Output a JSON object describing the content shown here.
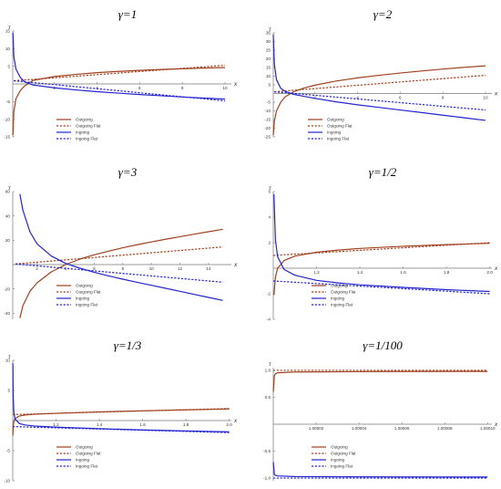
{
  "colors": {
    "outgoing": "#a0401e",
    "ingoing": "#2323d2",
    "axis": "#777777",
    "tick_text": "#333333"
  },
  "legend_labels": [
    "Outgoing",
    "Outgoing Flat",
    "Ingoing",
    "Ingoing Flat"
  ],
  "chart_data": [
    {
      "type": "line",
      "title": "γ=1",
      "xlabel": "x",
      "ylabel": "τ",
      "xlim": [
        0.05,
        10.3
      ],
      "ylim": [
        -15,
        15
      ],
      "x_ticks": [
        2,
        4,
        6,
        8,
        10
      ],
      "y_ticks": [
        -15,
        -10,
        -5,
        5,
        10,
        15
      ],
      "legend_placement": "bottom-center",
      "series": [
        {
          "name": "Outgoing",
          "style": "solid",
          "x": [
            0.06,
            0.1,
            0.2,
            0.4,
            0.6,
            1,
            2,
            3,
            4,
            5,
            6,
            7,
            8,
            9,
            10
          ],
          "y": [
            -14.5,
            -7.8,
            -4.2,
            -1.9,
            -0.6,
            1.0,
            2.1,
            2.7,
            3.2,
            3.55,
            3.85,
            4.1,
            4.3,
            4.5,
            4.65
          ]
        },
        {
          "name": "Outgoing Flat",
          "style": "dashed",
          "x": [
            0.1,
            10
          ],
          "y": [
            0.9,
            5.3
          ]
        },
        {
          "name": "Ingoing",
          "style": "solid",
          "x": [
            0.06,
            0.1,
            0.2,
            0.4,
            0.6,
            1,
            2,
            3,
            4,
            5,
            6,
            7,
            8,
            9,
            10
          ],
          "y": [
            14.5,
            7.8,
            4.2,
            1.9,
            0.6,
            -0.3,
            -1.1,
            -1.7,
            -2.2,
            -2.6,
            -3.0,
            -3.35,
            -3.7,
            -4.0,
            -4.3
          ]
        },
        {
          "name": "Ingoing Flat",
          "style": "dashed",
          "x": [
            0.1,
            10
          ],
          "y": [
            0.9,
            -4.8
          ]
        }
      ]
    },
    {
      "type": "line",
      "title": "γ=2",
      "xlabel": "x",
      "ylabel": "τ",
      "xlim": [
        0.05,
        10.3
      ],
      "ylim": [
        -25,
        35
      ],
      "x_ticks": [
        2,
        4,
        6,
        8,
        10
      ],
      "y_ticks": [
        -25,
        -20,
        -15,
        -10,
        -5,
        5,
        10,
        15,
        20,
        25,
        30,
        35
      ],
      "legend_placement": "bottom-center",
      "series": [
        {
          "name": "Outgoing",
          "style": "solid",
          "x": [
            0.05,
            0.1,
            0.2,
            0.4,
            0.6,
            1,
            1.5,
            2,
            3,
            4,
            5,
            6,
            7,
            8,
            9,
            10
          ],
          "y": [
            -24,
            -16,
            -10,
            -5,
            -2,
            1.0,
            3.2,
            4.8,
            7.2,
            9.0,
            10.5,
            11.8,
            13.0,
            14.1,
            15.1,
            16.0
          ]
        },
        {
          "name": "Outgoing Flat",
          "style": "dashed",
          "x": [
            0.1,
            10
          ],
          "y": [
            1.0,
            10.5
          ]
        },
        {
          "name": "Ingoing",
          "style": "solid",
          "x": [
            0.05,
            0.1,
            0.2,
            0.4,
            0.6,
            1,
            2,
            3,
            4,
            5,
            6,
            7,
            8,
            9,
            10
          ],
          "y": [
            34,
            17,
            8,
            3,
            1.3,
            -0.5,
            -2.8,
            -4.8,
            -6.5,
            -8.0,
            -9.5,
            -11.0,
            -12.5,
            -14.0,
            -15.5
          ]
        },
        {
          "name": "Ingoing Flat",
          "style": "dashed",
          "x": [
            0.1,
            10
          ],
          "y": [
            1.0,
            -9.5
          ]
        }
      ]
    },
    {
      "type": "line",
      "title": "γ=3",
      "xlabel": "x",
      "ylabel": "τ",
      "xlim": [
        0.3,
        15.6
      ],
      "ylim": [
        -45,
        60
      ],
      "x_ticks": [
        2,
        4,
        6,
        8,
        10,
        12,
        14
      ],
      "y_ticks": [
        -40,
        -20,
        20,
        40,
        60
      ],
      "legend_placement": "bottom-center",
      "series": [
        {
          "name": "Outgoing",
          "style": "solid",
          "x": [
            0.8,
            1,
            1.5,
            2,
            3,
            4,
            5,
            6,
            7,
            8,
            9,
            10,
            11,
            12,
            13,
            14,
            15
          ],
          "y": [
            -44,
            -34,
            -22,
            -15,
            -6,
            0,
            4.5,
            8,
            11,
            13.8,
            16.3,
            18.6,
            20.8,
            22.9,
            25,
            27,
            29
          ]
        },
        {
          "name": "Outgoing Flat",
          "style": "dashed",
          "x": [
            0.5,
            15
          ],
          "y": [
            0.5,
            14.5
          ]
        },
        {
          "name": "Ingoing",
          "style": "solid",
          "x": [
            0.8,
            1,
            1.5,
            2,
            3,
            4,
            5,
            6,
            7,
            8,
            9,
            10,
            11,
            12,
            13,
            14,
            15
          ],
          "y": [
            58,
            45,
            27,
            17,
            7,
            1,
            -3,
            -6.3,
            -9.3,
            -12,
            -14.6,
            -17,
            -19.5,
            -22,
            -24.5,
            -27,
            -29.5
          ]
        },
        {
          "name": "Ingoing Flat",
          "style": "dashed",
          "x": [
            0.5,
            15
          ],
          "y": [
            0.5,
            -14.5
          ]
        }
      ]
    },
    {
      "type": "line",
      "title": "γ=1/2",
      "xlabel": "x",
      "ylabel": "τ",
      "xlim": [
        1.0,
        2.01
      ],
      "ylim": [
        -4,
        6
      ],
      "x_ticks": [
        1.2,
        1.4,
        1.6,
        1.8,
        2.0
      ],
      "x_tick_labels": [
        "1.2",
        "1.4",
        "1.6",
        "1.8",
        "2.0"
      ],
      "y_ticks": [
        -4,
        -2,
        2,
        4,
        6
      ],
      "legend_placement": "bottom-center",
      "series": [
        {
          "name": "Outgoing",
          "style": "solid",
          "x": [
            1.003,
            1.01,
            1.02,
            1.05,
            1.1,
            1.2,
            1.3,
            1.4,
            1.6,
            1.8,
            2.0
          ],
          "y": [
            -2.1,
            -0.7,
            0.0,
            0.6,
            0.95,
            1.25,
            1.42,
            1.55,
            1.72,
            1.85,
            1.95
          ]
        },
        {
          "name": "Outgoing Flat",
          "style": "dashed",
          "x": [
            1.0,
            2.0
          ],
          "y": [
            1.0,
            2.0
          ]
        },
        {
          "name": "Ingoing",
          "style": "solid",
          "x": [
            1.003,
            1.01,
            1.02,
            1.05,
            1.1,
            1.2,
            1.3,
            1.4,
            1.6,
            1.8,
            2.0
          ],
          "y": [
            5.8,
            2.2,
            0.9,
            -0.1,
            -0.55,
            -0.95,
            -1.15,
            -1.3,
            -1.5,
            -1.68,
            -1.82
          ]
        },
        {
          "name": "Ingoing Flat",
          "style": "dashed",
          "x": [
            1.0,
            2.0
          ],
          "y": [
            -1.0,
            -2.0
          ]
        }
      ]
    },
    {
      "type": "line",
      "title": "γ=1/3",
      "xlabel": "x",
      "ylabel": "τ",
      "xlim": [
        1.0,
        2.01
      ],
      "ylim": [
        -10,
        10
      ],
      "x_ticks": [
        1.2,
        1.4,
        1.6,
        1.8,
        2.0
      ],
      "x_tick_labels": [
        "1.2",
        "1.4",
        "1.6",
        "1.8",
        "2.0"
      ],
      "y_ticks": [
        -10,
        -5,
        5,
        10
      ],
      "legend_placement": "bottom-center",
      "series": [
        {
          "name": "Outgoing",
          "style": "solid",
          "x": [
            1.0005,
            1.002,
            1.005,
            1.01,
            1.03,
            1.06,
            1.1,
            1.2,
            1.4,
            1.6,
            1.8,
            2.0
          ],
          "y": [
            -2.5,
            -1.0,
            -0.2,
            0.3,
            0.75,
            0.95,
            1.05,
            1.2,
            1.45,
            1.62,
            1.78,
            1.92
          ]
        },
        {
          "name": "Outgoing Flat",
          "style": "dashed",
          "x": [
            1.0,
            2.0
          ],
          "y": [
            1.0,
            2.0
          ]
        },
        {
          "name": "Ingoing",
          "style": "solid",
          "x": [
            1.0005,
            1.002,
            1.005,
            1.01,
            1.03,
            1.06,
            1.1,
            1.2,
            1.4,
            1.6,
            1.8,
            2.0
          ],
          "y": [
            9.5,
            4.0,
            1.5,
            0.3,
            -0.5,
            -0.75,
            -0.9,
            -1.1,
            -1.35,
            -1.55,
            -1.72,
            -1.88
          ]
        },
        {
          "name": "Ingoing Flat",
          "style": "dashed",
          "x": [
            1.0,
            2.0
          ],
          "y": [
            -1.0,
            -2.0
          ]
        }
      ]
    },
    {
      "type": "line",
      "title": "γ=1/100",
      "xlabel": "x",
      "ylabel": "τ",
      "xlim": [
        1.0,
        1.000102
      ],
      "ylim": [
        -1.05,
        1.05
      ],
      "x_ticks": [
        1.00002,
        1.00004,
        1.00006,
        1.00008,
        1.0001
      ],
      "x_tick_labels": [
        "1.00002",
        "1.00004",
        "1.00006",
        "1.00008",
        "1.00010"
      ],
      "y_ticks": [
        -1.0,
        -0.5,
        0.5,
        1.0
      ],
      "y_tick_labels": [
        "-1.0",
        "-0.5",
        "0.5",
        "1.0"
      ],
      "legend_placement": "bottom-center",
      "series": [
        {
          "name": "Outgoing",
          "style": "solid",
          "x": [
            1.0,
            1.0000005,
            1.000001,
            1.000002,
            1.00001,
            1.00005,
            1.0001
          ],
          "y": [
            0.6,
            0.9,
            0.935,
            0.955,
            0.97,
            0.978,
            0.98
          ]
        },
        {
          "name": "Outgoing Flat",
          "style": "dashed",
          "x": [
            1.0,
            1.0001
          ],
          "y": [
            1.0,
            1.0
          ]
        },
        {
          "name": "Ingoing",
          "style": "solid",
          "x": [
            1.0,
            1.0000005,
            1.000001,
            1.000002,
            1.00001,
            1.00005,
            1.0001
          ],
          "y": [
            -0.7,
            -0.93,
            -0.95,
            -0.96,
            -0.972,
            -0.978,
            -0.98
          ]
        },
        {
          "name": "Ingoing Flat",
          "style": "dashed",
          "x": [
            1.0,
            1.0001
          ],
          "y": [
            -1.0,
            -1.0
          ]
        }
      ]
    }
  ]
}
